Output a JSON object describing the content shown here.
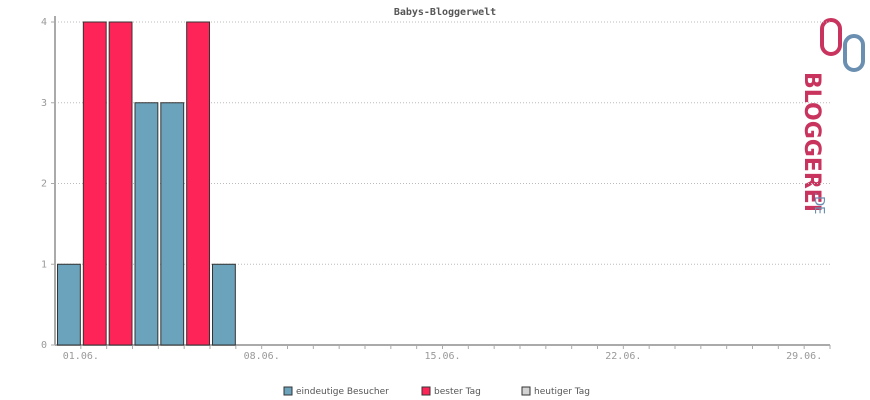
{
  "chart_data": {
    "type": "bar",
    "title": "Babys-Bloggerwelt",
    "categories": [
      "01.06.",
      null,
      null,
      null,
      null,
      null,
      null,
      "08.06.",
      null,
      null,
      null,
      null,
      null,
      null,
      "15.06.",
      null,
      null,
      null,
      null,
      null,
      null,
      "22.06.",
      null,
      null,
      null,
      null,
      null,
      null,
      "29.06.",
      null
    ],
    "series": [
      {
        "name": "eindeutige Besucher",
        "color": "#6aa3bb",
        "values": [
          1,
          null,
          null,
          3,
          3,
          null,
          1,
          null,
          null,
          null,
          null,
          null,
          null,
          null,
          null,
          null,
          null,
          null,
          null,
          null,
          null,
          null,
          null,
          null,
          null,
          null,
          null,
          null,
          null,
          null
        ]
      },
      {
        "name": "bester Tag",
        "color": "#ff2458",
        "values": [
          null,
          4,
          4,
          null,
          null,
          4,
          null,
          null,
          null,
          null,
          null,
          null,
          null,
          null,
          null,
          null,
          null,
          null,
          null,
          null,
          null,
          null,
          null,
          null,
          null,
          null,
          null,
          null,
          null,
          null
        ]
      },
      {
        "name": "heutiger Tag",
        "color": "#d3d3d3",
        "values": [
          null,
          null,
          null,
          null,
          null,
          null,
          null,
          null,
          null,
          null,
          null,
          null,
          null,
          null,
          null,
          null,
          null,
          null,
          null,
          null,
          null,
          null,
          null,
          null,
          null,
          null,
          null,
          null,
          null,
          null
        ]
      }
    ],
    "ylim": [
      0,
      4
    ],
    "yticks": [
      0,
      1,
      2,
      3,
      4
    ],
    "grid": true
  },
  "logo": {
    "main": "BLOGGEREI",
    "suffix": ".DE"
  }
}
